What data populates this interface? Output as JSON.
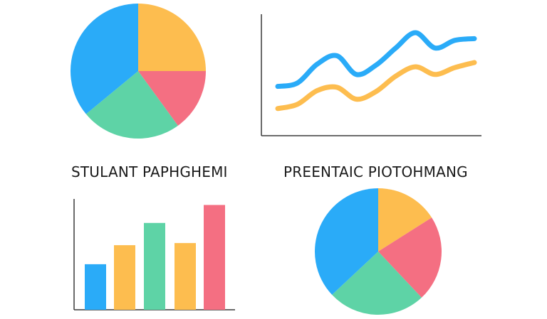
{
  "captions": {
    "left": "STULANT PAPHGHEMI",
    "right": "PREENTAIC PIOTOHMANG"
  },
  "colors": {
    "blue": "#2AABF8",
    "yellow": "#FDBD4F",
    "pink": "#F46F82",
    "green": "#5ED3A6",
    "axis": "#3a3a3a"
  },
  "chart_data": [
    {
      "type": "pie",
      "position": "top-left",
      "slices": [
        {
          "value": 25,
          "color": "yellow"
        },
        {
          "value": 15,
          "color": "pink"
        },
        {
          "value": 24,
          "color": "green"
        },
        {
          "value": 36,
          "color": "blue"
        }
      ]
    },
    {
      "type": "line",
      "position": "top-right",
      "x": [
        0,
        1,
        2,
        3,
        4,
        5,
        6,
        7,
        8,
        9,
        10
      ],
      "series": [
        {
          "color": "blue",
          "values": [
            3.2,
            3.6,
            5.8,
            6.8,
            4.6,
            5.7,
            7.7,
            9.5,
            7.7,
            8.6,
            8.8
          ]
        },
        {
          "color": "yellow",
          "values": [
            0.6,
            1.1,
            2.7,
            3.1,
            1.7,
            2.6,
            4.4,
            5.5,
            4.6,
            5.4,
            6.0
          ]
        }
      ],
      "ylim": [
        0,
        10
      ],
      "grid": false
    },
    {
      "type": "bar",
      "position": "bottom-left",
      "categories": [
        "1",
        "2",
        "3",
        "4",
        "5"
      ],
      "values": [
        43,
        61,
        82,
        63,
        99
      ],
      "colors": [
        "blue",
        "yellow",
        "green",
        "yellow",
        "pink"
      ],
      "ylim": [
        0,
        100
      ],
      "grid": false
    },
    {
      "type": "pie",
      "position": "bottom-right",
      "slices": [
        {
          "value": 16,
          "color": "yellow"
        },
        {
          "value": 22,
          "color": "pink"
        },
        {
          "value": 25,
          "color": "green"
        },
        {
          "value": 37,
          "color": "blue"
        }
      ]
    }
  ]
}
